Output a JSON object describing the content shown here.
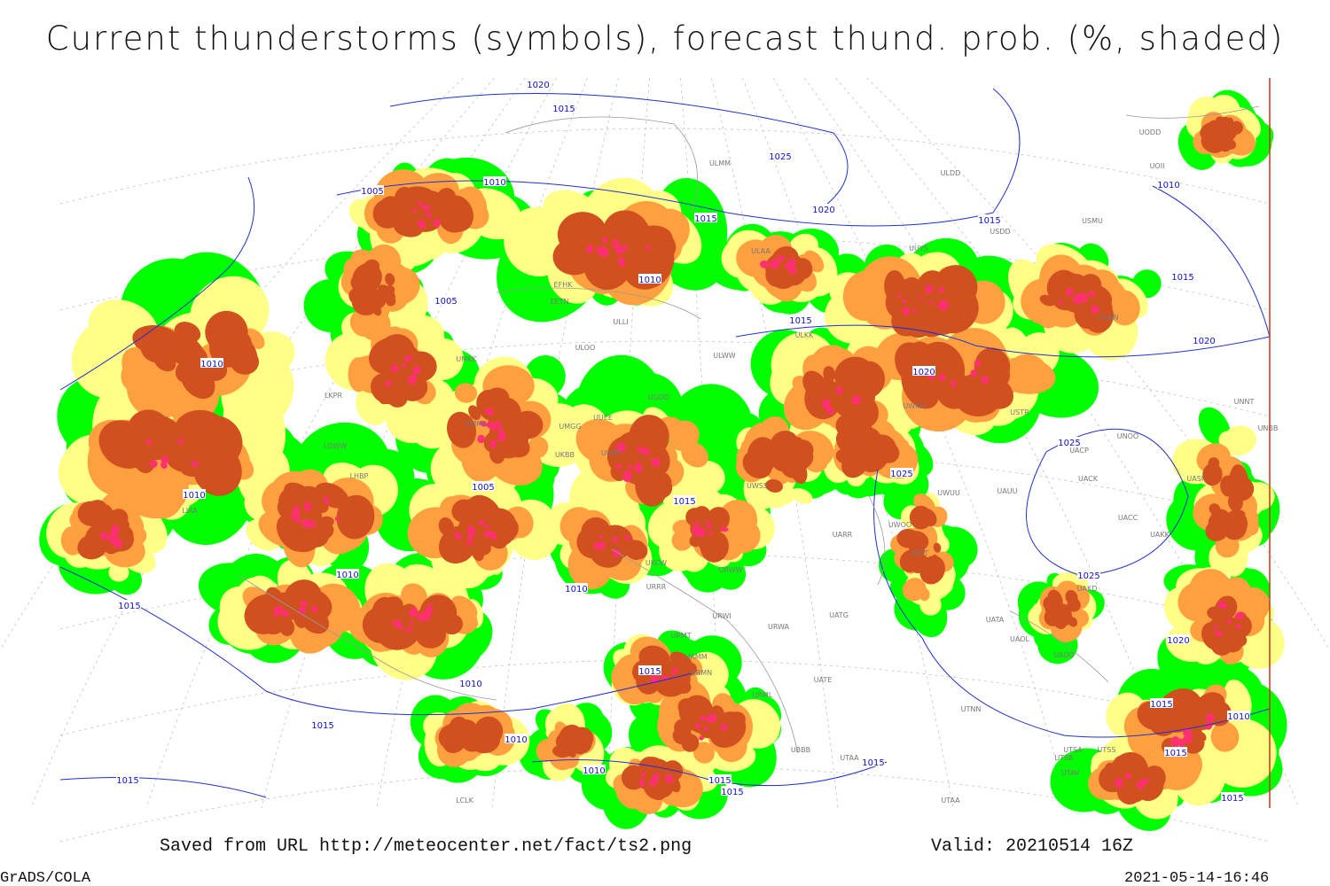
{
  "header": {
    "title": "Current thunderstorms (symbols), forecast thund. prob. (%, shaded)"
  },
  "footer": {
    "source": "Saved from URL http://meteocenter.net/fact/ts2.png",
    "valid": "Valid: 20210514 16Z",
    "software": "GrADS/COLA",
    "timestamp": "2021-05-14-16:46"
  },
  "map": {
    "isobar_labels": [
      "1020",
      "1015",
      "1025",
      "1005",
      "1010",
      "1015",
      "1020",
      "1015",
      "1010",
      "1010",
      "1005",
      "1015",
      "1015",
      "1020",
      "1010",
      "1020",
      "1025",
      "1025",
      "1005",
      "1010",
      "1015",
      "1010",
      "1010",
      "1025",
      "1015",
      "1020",
      "1015",
      "1010",
      "1015",
      "1010",
      "1015",
      "1010",
      "1015",
      "1015",
      "1010",
      "1015",
      "1015",
      "1015",
      "1015"
    ],
    "station_labels": [
      "UODD",
      "UOII",
      "ULDD",
      "ULMM",
      "USDD",
      "USMU",
      "ULAA",
      "UUYS",
      "EFHK",
      "EETN",
      "ULLI",
      "USNN",
      "ULKK",
      "ULWW",
      "UMKK",
      "ULOO",
      "LKPR",
      "UMMS",
      "UMGG",
      "UUEE",
      "UUDD",
      "UWKD",
      "USTR",
      "UNNT",
      "UNBB",
      "LOWW",
      "LHBP",
      "UKBB",
      "UUBP",
      "UNOO",
      "UACP",
      "UACK",
      "UASP",
      "UAUU",
      "UWUU",
      "UWSS",
      "LIRA",
      "UARR",
      "UWOO",
      "UACC",
      "UAKK",
      "UATT",
      "UKCW",
      "URWW",
      "URRR",
      "UAKD",
      "URWI",
      "UATG",
      "URWA",
      "UATA",
      "UAOL",
      "UAOO",
      "URMT",
      "URMM",
      "URMN",
      "UATE",
      "URML",
      "UTNN",
      "UBBB",
      "UTAA",
      "UTSA",
      "UTSS",
      "UTSB",
      "UTAV",
      "UTAA",
      "LCLK"
    ]
  }
}
